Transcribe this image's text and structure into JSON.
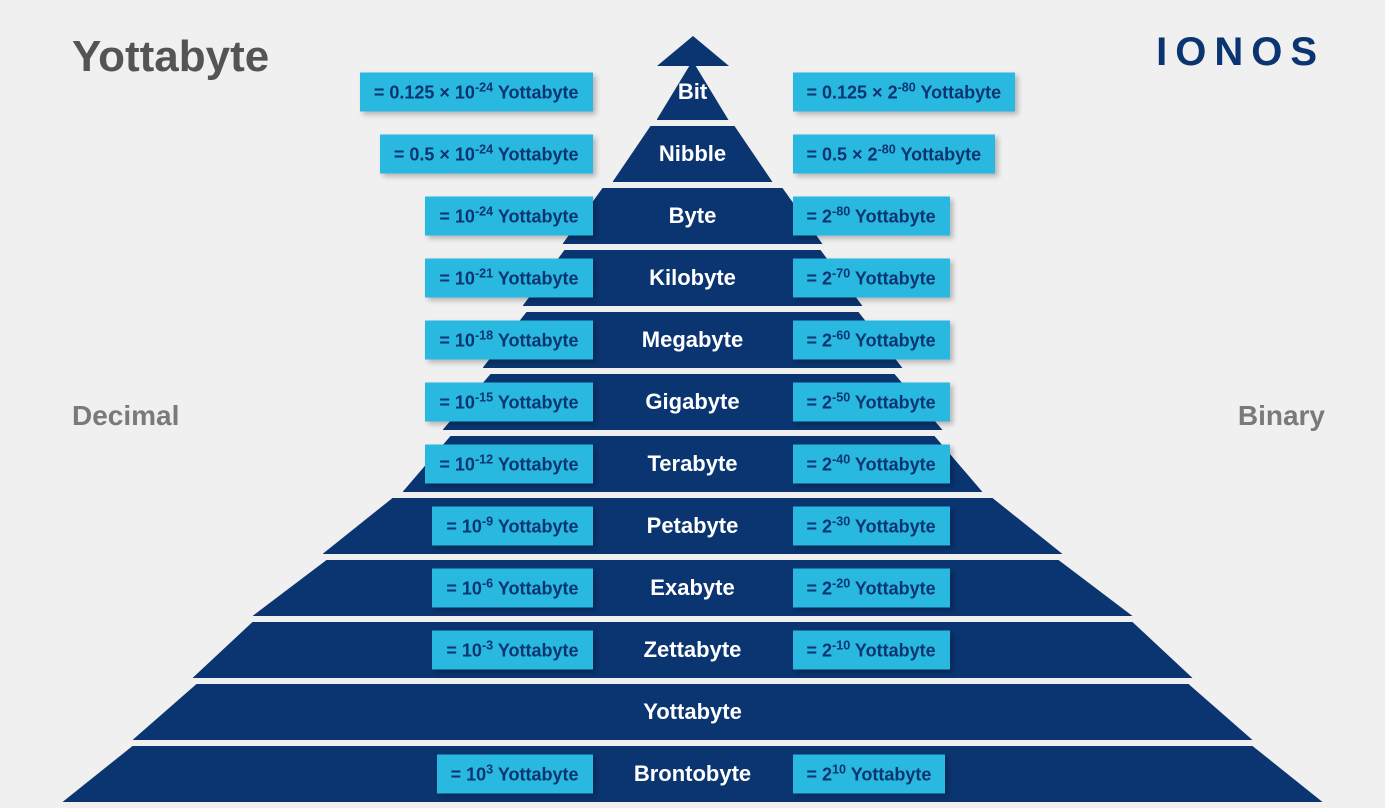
{
  "title": "Yottabyte",
  "logo": "IONOS",
  "sideLabels": {
    "left": "Decimal",
    "right": "Binary"
  },
  "colors": {
    "pyramid": "#0a3571",
    "tagBg": "#29b8e0",
    "tagText": "#0a3571",
    "unitText": "#ffffff",
    "titleText": "#545454",
    "sideText": "#7a7a7a",
    "background": "#f0f0f0"
  },
  "layout": {
    "levelHeight": 56,
    "levelGap": 6,
    "apexHeight": 30,
    "tagOffsetFromCenter": 100,
    "widths": [
      72,
      160,
      260,
      340,
      420,
      500,
      580,
      740,
      880,
      1000,
      1120,
      1260
    ],
    "clips": [
      34,
      38,
      40,
      42,
      44,
      48,
      48,
      70,
      74,
      60,
      64,
      70
    ]
  },
  "levels": [
    {
      "unit": "Bit",
      "dec": {
        "pre": "= 0.125 × 10",
        "exp": "-24",
        "post": " Yottabyte"
      },
      "bin": {
        "pre": "= 0.125 × 2",
        "exp": "-80",
        "post": " Yottabyte"
      }
    },
    {
      "unit": "Nibble",
      "dec": {
        "pre": "= 0.5 × 10",
        "exp": "-24",
        "post": " Yottabyte"
      },
      "bin": {
        "pre": "= 0.5 × 2",
        "exp": "-80",
        "post": " Yottabyte"
      }
    },
    {
      "unit": "Byte",
      "dec": {
        "pre": "= 10",
        "exp": "-24",
        "post": " Yottabyte"
      },
      "bin": {
        "pre": "= 2",
        "exp": "-80",
        "post": " Yottabyte"
      }
    },
    {
      "unit": "Kilobyte",
      "dec": {
        "pre": "= 10",
        "exp": "-21",
        "post": " Yottabyte"
      },
      "bin": {
        "pre": "= 2",
        "exp": "-70",
        "post": " Yottabyte"
      }
    },
    {
      "unit": "Megabyte",
      "dec": {
        "pre": "= 10",
        "exp": "-18",
        "post": " Yottabyte"
      },
      "bin": {
        "pre": "= 2",
        "exp": "-60",
        "post": " Yottabyte"
      }
    },
    {
      "unit": "Gigabyte",
      "dec": {
        "pre": "= 10",
        "exp": "-15",
        "post": " Yottabyte"
      },
      "bin": {
        "pre": "= 2",
        "exp": "-50",
        "post": " Yottabyte"
      }
    },
    {
      "unit": "Terabyte",
      "dec": {
        "pre": "= 10",
        "exp": "-12",
        "post": " Yottabyte"
      },
      "bin": {
        "pre": "= 2",
        "exp": "-40",
        "post": " Yottabyte"
      }
    },
    {
      "unit": "Petabyte",
      "dec": {
        "pre": "= 10",
        "exp": "-9",
        "post": " Yottabyte"
      },
      "bin": {
        "pre": "= 2",
        "exp": "-30",
        "post": " Yottabyte"
      }
    },
    {
      "unit": "Exabyte",
      "dec": {
        "pre": "= 10",
        "exp": "-6",
        "post": " Yottabyte"
      },
      "bin": {
        "pre": "= 2",
        "exp": "-20",
        "post": " Yottabyte"
      }
    },
    {
      "unit": "Zettabyte",
      "dec": {
        "pre": "= 10",
        "exp": "-3",
        "post": " Yottabyte"
      },
      "bin": {
        "pre": "= 2",
        "exp": "-10",
        "post": " Yottabyte"
      }
    },
    {
      "unit": "Yottabyte",
      "dec": null,
      "bin": null
    },
    {
      "unit": "Brontobyte",
      "dec": {
        "pre": "= 10",
        "exp": "3",
        "post": " Yottabyte"
      },
      "bin": {
        "pre": "= 2",
        "exp": "10",
        "post": " Yottabyte"
      }
    }
  ]
}
